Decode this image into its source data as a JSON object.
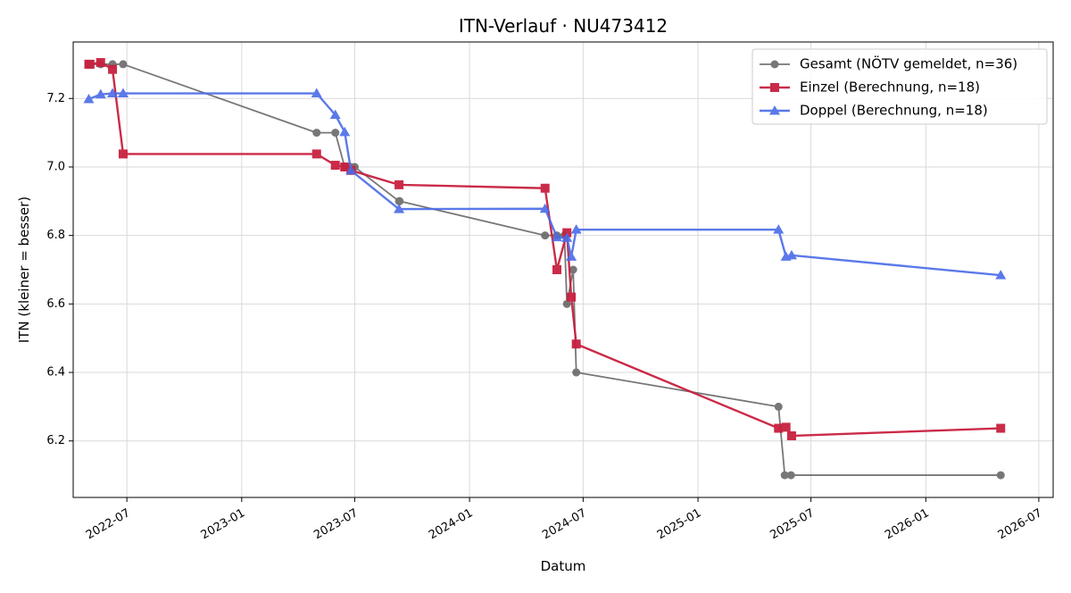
{
  "chart_data": {
    "type": "line",
    "title": "ITN-Verlauf · NU473412",
    "xlabel": "Datum",
    "ylabel": "ITN  (kleiner = besser)",
    "x_type": "date",
    "xlim": [
      "2022-04-06",
      "2026-07-24"
    ],
    "ylim": [
      6.035,
      7.365
    ],
    "x_ticks": [
      "2022-07-01",
      "2023-01-01",
      "2023-07-01",
      "2024-01-01",
      "2024-07-01",
      "2025-01-01",
      "2025-07-01",
      "2026-01-01",
      "2026-07-01"
    ],
    "x_tick_labels": [
      "2022-07",
      "2023-01",
      "2023-07",
      "2024-01",
      "2024-07",
      "2025-01",
      "2025-07",
      "2026-01",
      "2026-07"
    ],
    "y_ticks": [
      6.2,
      6.4,
      6.6,
      6.8,
      7.0,
      7.2
    ],
    "y_tick_labels": [
      "6.2",
      "6.4",
      "6.6",
      "6.8",
      "7.0",
      "7.2"
    ],
    "grid": true,
    "legend_position": "top-right",
    "series": [
      {
        "name": "Gesamt (NÖTV gemeldet, n=36)",
        "color": "#4a4a4a",
        "marker": "circle",
        "points": [
          [
            "2022-05-01",
            7.3
          ],
          [
            "2022-05-02",
            7.3
          ],
          [
            "2022-05-20",
            7.3
          ],
          [
            "2022-06-08",
            7.3
          ],
          [
            "2022-06-25",
            7.3
          ],
          [
            "2023-05-01",
            7.1
          ],
          [
            "2023-05-31",
            7.1
          ],
          [
            "2023-06-15",
            7.0
          ],
          [
            "2023-06-25",
            7.0
          ],
          [
            "2023-07-01",
            7.0
          ],
          [
            "2023-09-10",
            6.9
          ],
          [
            "2023-09-11",
            6.9
          ],
          [
            "2024-05-01",
            6.8
          ],
          [
            "2024-05-20",
            6.8
          ],
          [
            "2024-06-01",
            6.8
          ],
          [
            "2024-06-05",
            6.6
          ],
          [
            "2024-06-15",
            6.7
          ],
          [
            "2024-06-20",
            6.4
          ],
          [
            "2025-05-10",
            6.3
          ],
          [
            "2025-05-20",
            6.1
          ],
          [
            "2025-05-30",
            6.1
          ],
          [
            "2026-05-01",
            6.1
          ]
        ]
      },
      {
        "name": "Einzel (Berechnung, n=18)",
        "color": "#c8203f",
        "marker": "square",
        "points": [
          [
            "2022-05-01",
            7.3
          ],
          [
            "2022-05-03",
            7.3
          ],
          [
            "2022-05-20",
            7.305
          ],
          [
            "2022-06-08",
            7.285
          ],
          [
            "2022-06-25",
            7.038
          ],
          [
            "2023-05-01",
            7.038
          ],
          [
            "2023-05-31",
            7.005
          ],
          [
            "2023-06-15",
            7.0
          ],
          [
            "2023-06-25",
            6.99
          ],
          [
            "2023-09-10",
            6.948
          ],
          [
            "2024-05-01",
            6.938
          ],
          [
            "2024-05-20",
            6.7
          ],
          [
            "2024-06-05",
            6.808
          ],
          [
            "2024-06-12",
            6.62
          ],
          [
            "2024-06-20",
            6.483
          ],
          [
            "2025-05-10",
            6.237
          ],
          [
            "2025-05-22",
            6.24
          ],
          [
            "2025-05-31",
            6.215
          ],
          [
            "2026-05-01",
            6.237
          ]
        ]
      },
      {
        "name": "Doppel (Berechnung, n=18)",
        "color": "#4a6be8",
        "marker": "triangle",
        "points": [
          [
            "2022-05-01",
            7.198
          ],
          [
            "2022-05-20",
            7.212
          ],
          [
            "2022-06-08",
            7.215
          ],
          [
            "2022-06-25",
            7.215
          ],
          [
            "2023-05-01",
            7.215
          ],
          [
            "2023-05-31",
            7.152
          ],
          [
            "2023-06-15",
            7.102
          ],
          [
            "2023-06-25",
            6.99
          ],
          [
            "2023-09-10",
            6.877
          ],
          [
            "2024-05-01",
            6.878
          ],
          [
            "2024-05-20",
            6.795
          ],
          [
            "2024-06-05",
            6.793
          ],
          [
            "2024-06-12",
            6.738
          ],
          [
            "2024-06-20",
            6.817
          ],
          [
            "2025-05-10",
            6.817
          ],
          [
            "2025-05-22",
            6.738
          ],
          [
            "2025-05-31",
            6.742
          ],
          [
            "2026-05-01",
            6.684
          ]
        ]
      }
    ]
  }
}
